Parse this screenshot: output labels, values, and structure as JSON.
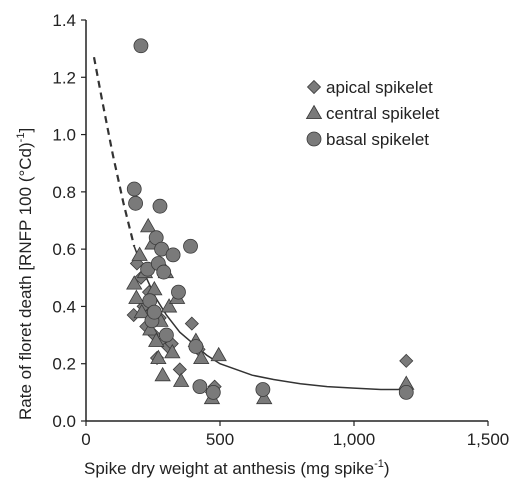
{
  "chart_data": {
    "type": "scatter",
    "xlabel": "Spike dry weight at anthesis (mg spike",
    "xlabel_sup": "-1",
    "xlabel_end": ")",
    "ylabel": "Rate of floret death [RNFP 100 (°Cd)",
    "ylabel_sup": "-1",
    "ylabel_end": "]",
    "xlim": [
      0,
      1500
    ],
    "ylim": [
      0,
      1.4
    ],
    "x_ticks": [
      0,
      500,
      1000,
      1500
    ],
    "x_tick_labels": [
      "0",
      "500",
      "1,000",
      "1,500"
    ],
    "y_ticks": [
      0,
      0.2,
      0.4,
      0.6,
      0.8,
      1.0,
      1.2,
      1.4
    ],
    "y_tick_labels": [
      "0.0",
      "0.2",
      "0.4",
      "0.6",
      "0.8",
      "1.0",
      "1.2",
      "1.4"
    ],
    "legend_position": "top-right",
    "series": [
      {
        "name": "apical spikelet",
        "marker": "diamond",
        "points": [
          [
            178,
            0.37
          ],
          [
            190,
            0.55
          ],
          [
            205,
            0.5
          ],
          [
            215,
            0.4
          ],
          [
            225,
            0.33
          ],
          [
            235,
            0.45
          ],
          [
            245,
            0.38
          ],
          [
            255,
            0.3
          ],
          [
            265,
            0.22
          ],
          [
            275,
            0.36
          ],
          [
            290,
            0.28
          ],
          [
            305,
            0.26
          ],
          [
            320,
            0.27
          ],
          [
            350,
            0.18
          ],
          [
            395,
            0.34
          ],
          [
            420,
            0.25
          ],
          [
            470,
            0.1
          ],
          [
            480,
            0.12
          ],
          [
            1195,
            0.21
          ]
        ]
      },
      {
        "name": "central spikelet",
        "marker": "triangle",
        "points": [
          [
            180,
            0.48
          ],
          [
            188,
            0.43
          ],
          [
            200,
            0.58
          ],
          [
            208,
            0.38
          ],
          [
            220,
            0.52
          ],
          [
            232,
            0.68
          ],
          [
            240,
            0.32
          ],
          [
            248,
            0.62
          ],
          [
            255,
            0.46
          ],
          [
            262,
            0.28
          ],
          [
            270,
            0.22
          ],
          [
            278,
            0.35
          ],
          [
            286,
            0.16
          ],
          [
            298,
            0.52
          ],
          [
            310,
            0.4
          ],
          [
            322,
            0.24
          ],
          [
            340,
            0.43
          ],
          [
            355,
            0.14
          ],
          [
            410,
            0.28
          ],
          [
            430,
            0.22
          ],
          [
            470,
            0.08
          ],
          [
            495,
            0.23
          ],
          [
            665,
            0.08
          ],
          [
            1195,
            0.13
          ]
        ]
      },
      {
        "name": "basal spikelet",
        "marker": "circle",
        "points": [
          [
            205,
            1.31
          ],
          [
            180,
            0.81
          ],
          [
            185,
            0.76
          ],
          [
            230,
            0.53
          ],
          [
            238,
            0.42
          ],
          [
            246,
            0.35
          ],
          [
            255,
            0.38
          ],
          [
            262,
            0.64
          ],
          [
            270,
            0.55
          ],
          [
            276,
            0.75
          ],
          [
            282,
            0.6
          ],
          [
            290,
            0.52
          ],
          [
            300,
            0.3
          ],
          [
            325,
            0.58
          ],
          [
            345,
            0.45
          ],
          [
            390,
            0.61
          ],
          [
            410,
            0.26
          ],
          [
            425,
            0.12
          ],
          [
            475,
            0.1
          ],
          [
            660,
            0.11
          ],
          [
            1195,
            0.1
          ]
        ]
      }
    ],
    "fit_curve": {
      "style": "dashed-then-solid",
      "dashed_until_x": 180,
      "points": [
        [
          30,
          1.27
        ],
        [
          60,
          1.12
        ],
        [
          100,
          0.93
        ],
        [
          140,
          0.76
        ],
        [
          180,
          0.61
        ],
        [
          220,
          0.51
        ],
        [
          260,
          0.43
        ],
        [
          300,
          0.37
        ],
        [
          350,
          0.31
        ],
        [
          400,
          0.27
        ],
        [
          450,
          0.23
        ],
        [
          500,
          0.2
        ],
        [
          560,
          0.18
        ],
        [
          620,
          0.16
        ],
        [
          700,
          0.145
        ],
        [
          800,
          0.13
        ],
        [
          900,
          0.12
        ],
        [
          1000,
          0.115
        ],
        [
          1100,
          0.11
        ],
        [
          1200,
          0.11
        ]
      ]
    }
  }
}
